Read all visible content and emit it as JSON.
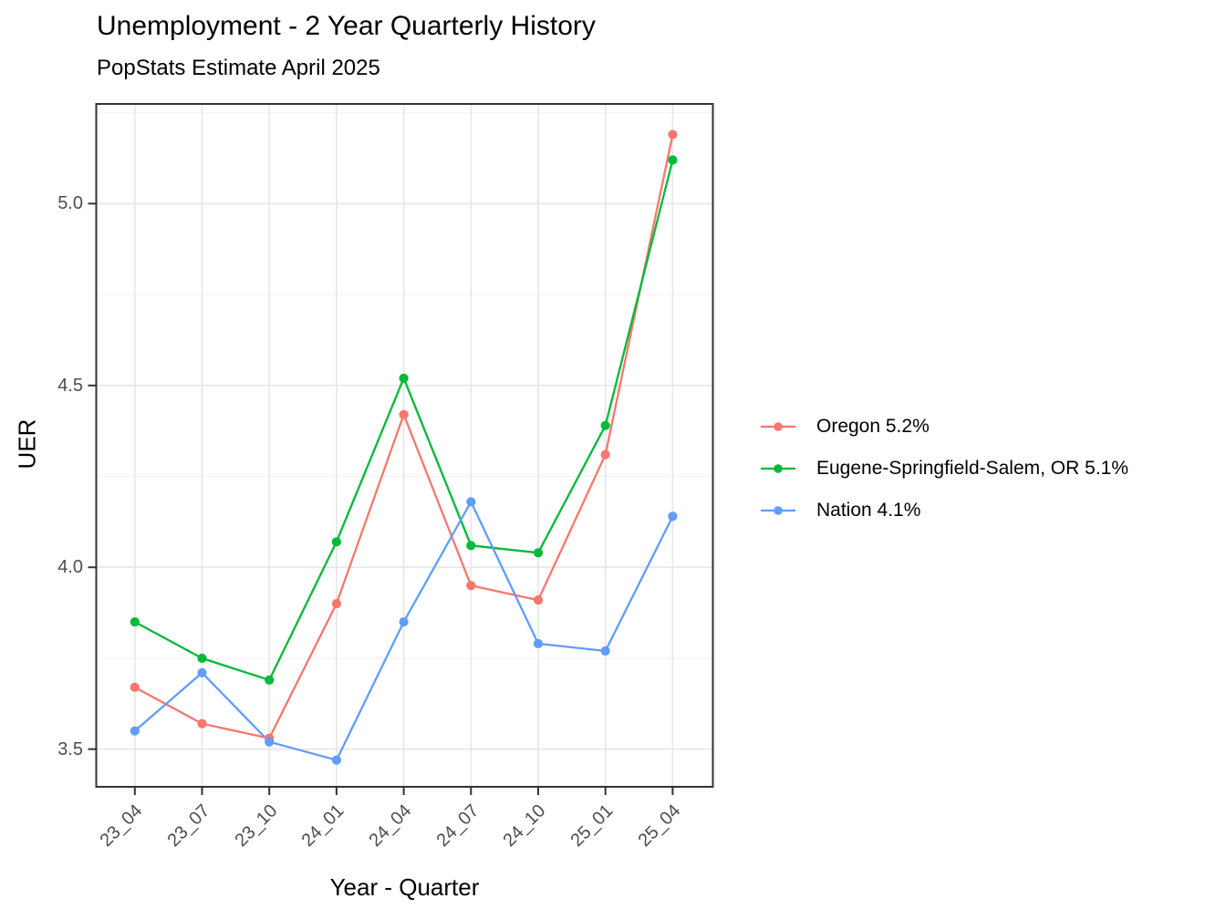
{
  "figure": {
    "title": "Unemployment - 2 Year Quarterly History",
    "subtitle": "PopStats Estimate April 2025"
  },
  "chart_data": {
    "type": "line",
    "title": "Unemployment - 2 Year Quarterly History",
    "subtitle": "PopStats Estimate April 2025",
    "xlabel": "Year - Quarter",
    "ylabel": "UER",
    "categories": [
      "23_04",
      "23_07",
      "23_10",
      "24_01",
      "24_04",
      "24_07",
      "24_10",
      "25_01",
      "25_04"
    ],
    "series": [
      {
        "name": "Oregon",
        "legend_label": "Oregon 5.2%",
        "color": "#F8766D",
        "values": [
          3.67,
          3.57,
          3.53,
          3.9,
          4.42,
          3.95,
          3.91,
          4.31,
          5.19
        ]
      },
      {
        "name": "Eugene-Springfield-Salem, OR",
        "legend_label": "Eugene-Springfield-Salem, OR 5.1%",
        "color": "#00BA38",
        "values": [
          3.85,
          3.75,
          3.69,
          4.07,
          4.52,
          4.06,
          4.04,
          4.39,
          5.12
        ]
      },
      {
        "name": "Nation",
        "legend_label": "Nation 4.1%",
        "color": "#619CFF",
        "values": [
          3.55,
          3.71,
          3.52,
          3.47,
          3.85,
          4.18,
          3.79,
          3.77,
          4.14
        ]
      }
    ],
    "y_ticks": [
      3.5,
      4.0,
      4.5,
      5.0
    ],
    "y_minor_gridlines": [
      3.75,
      4.25,
      4.75,
      5.25
    ],
    "ylim": [
      3.4,
      5.27
    ],
    "grid": true,
    "legend_position": "right"
  },
  "colors": {
    "background": "#FFFFFF",
    "panel_border": "#333333",
    "grid_major": "#E7E7E7",
    "grid_minor": "#F2F2F2",
    "axis_text": "#4D4D4D",
    "axis_title": "#000000",
    "tick_mark": "#333333"
  }
}
